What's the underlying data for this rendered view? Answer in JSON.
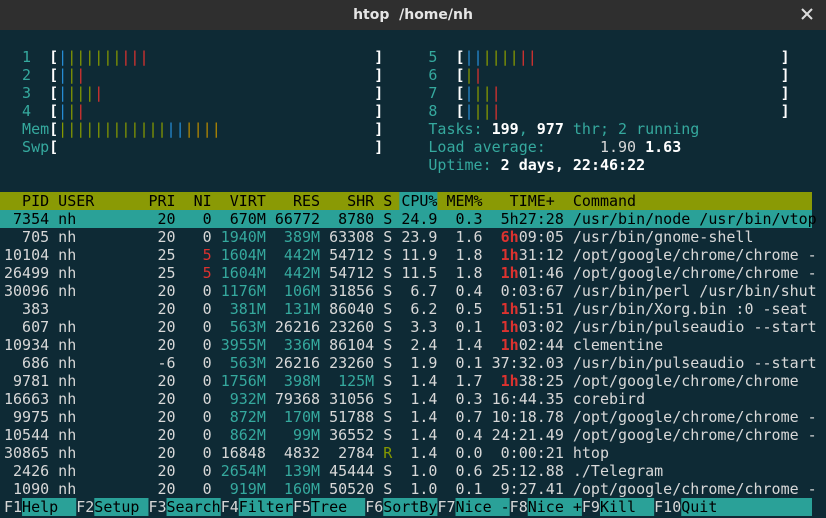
{
  "window": {
    "title": "htop  /home/nh"
  },
  "meters": {
    "left": [
      {
        "label": "1",
        "open": "[",
        "bar": [
          {
            "text": "|",
            "color": "#268bd2"
          },
          {
            "text": "||||||",
            "color": "#859900"
          },
          {
            "text": "|||",
            "color": "#dc322f"
          }
        ],
        "close": "]"
      },
      {
        "label": "2",
        "open": "[",
        "bar": [
          {
            "text": "|",
            "color": "#268bd2"
          },
          {
            "text": "|",
            "color": "#859900"
          },
          {
            "text": "|",
            "color": "#dc322f"
          }
        ],
        "close": "]"
      },
      {
        "label": "3",
        "open": "[",
        "bar": [
          {
            "text": "|",
            "color": "#268bd2"
          },
          {
            "text": "|||",
            "color": "#859900"
          },
          {
            "text": "|",
            "color": "#dc322f"
          }
        ],
        "close": "]"
      },
      {
        "label": "4",
        "open": "[",
        "bar": [
          {
            "text": "|",
            "color": "#268bd2"
          },
          {
            "text": "|",
            "color": "#859900"
          },
          {
            "text": "|",
            "color": "#dc322f"
          }
        ],
        "close": "]"
      },
      {
        "label": "Mem",
        "open": "[",
        "bar": [
          {
            "text": "||||||||||||",
            "color": "#859900"
          },
          {
            "text": "||",
            "color": "#268bd2"
          },
          {
            "text": "||||",
            "color": "#b58900"
          }
        ],
        "close": "]"
      },
      {
        "label": "Swp",
        "open": "[",
        "bar": [],
        "close": "]"
      }
    ],
    "right": [
      {
        "label": "5",
        "open": "[",
        "bar": [
          {
            "text": "||",
            "color": "#268bd2"
          },
          {
            "text": "||||",
            "color": "#859900"
          },
          {
            "text": "||",
            "color": "#dc322f"
          }
        ],
        "close": "]"
      },
      {
        "label": "6",
        "open": "[",
        "bar": [
          {
            "text": "|",
            "color": "#859900"
          },
          {
            "text": "|",
            "color": "#dc322f"
          }
        ],
        "close": "]"
      },
      {
        "label": "7",
        "open": "[",
        "bar": [
          {
            "text": "|",
            "color": "#268bd2"
          },
          {
            "text": "||",
            "color": "#859900"
          },
          {
            "text": "|",
            "color": "#dc322f"
          }
        ],
        "close": "]"
      },
      {
        "label": "8",
        "open": "[",
        "bar": [
          {
            "text": "|",
            "color": "#268bd2"
          },
          {
            "text": "||",
            "color": "#859900"
          },
          {
            "text": "|",
            "color": "#dc322f"
          }
        ],
        "close": "]"
      }
    ]
  },
  "summary": {
    "tasks": {
      "label": "Tasks:",
      "processes": "199",
      "sep": ",",
      "threads": "977",
      "running": "thr; 2 running"
    },
    "load": {
      "label": "Load average:",
      "avg1": "1.90",
      "avg5": "1.63"
    },
    "uptime": {
      "label": "Uptime:",
      "value": "2 days, 22:46:22"
    }
  },
  "table": {
    "header": [
      "PID",
      "USER",
      "PRI",
      "NI",
      "VIRT",
      "RES",
      "SHR",
      "S",
      "CPU%",
      "MEM%",
      "TIME+",
      "Command"
    ],
    "selected": 0,
    "rows": [
      [
        "7354",
        "nh",
        "20",
        "0",
        "670M",
        "66772",
        "8780",
        "S",
        "24.9",
        "0.3",
        [
          "5h",
          "27:28"
        ],
        "/usr/bin/node /usr/bin/vtop"
      ],
      [
        "705",
        "nh",
        "20",
        "0",
        "1940M",
        "389M",
        "63308",
        "S",
        "23.9",
        "1.6",
        [
          "6h",
          "09:05"
        ],
        "/usr/bin/gnome-shell"
      ],
      [
        "10104",
        "nh",
        "25",
        "5",
        "1604M",
        "442M",
        "54712",
        "S",
        "11.9",
        "1.8",
        [
          "1h",
          "31:12"
        ],
        "/opt/google/chrome/chrome -"
      ],
      [
        "26499",
        "nh",
        "25",
        "5",
        "1604M",
        "442M",
        "54712",
        "S",
        "11.5",
        "1.8",
        [
          "1h",
          "01:46"
        ],
        "/opt/google/chrome/chrome -"
      ],
      [
        "30096",
        "nh",
        "20",
        "0",
        "1176M",
        "106M",
        "31856",
        "S",
        "6.7",
        "0.4",
        "0:03:67",
        "/usr/bin/perl /usr/bin/shut"
      ],
      [
        "383",
        null,
        "20",
        "0",
        "381M",
        "131M",
        "86040",
        "S",
        "6.2",
        "0.5",
        [
          "1h",
          "51:51"
        ],
        "/usr/bin/Xorg.bin :0 -seat"
      ],
      [
        "607",
        "nh",
        "20",
        "0",
        "563M",
        "26216",
        "23260",
        "S",
        "3.3",
        "0.1",
        [
          "1h",
          "03:02"
        ],
        "/usr/bin/pulseaudio --start"
      ],
      [
        "10934",
        "nh",
        "20",
        "0",
        "3955M",
        "336M",
        "86104",
        "S",
        "2.4",
        "1.4",
        [
          "1h",
          "02:44"
        ],
        "clementine"
      ],
      [
        "686",
        "nh",
        "-6",
        "0",
        "563M",
        "26216",
        "23260",
        "S",
        "1.9",
        "0.1",
        "37:32.03",
        "/usr/bin/pulseaudio --start"
      ],
      [
        "9781",
        "nh",
        "20",
        "0",
        "1756M",
        "398M",
        "125M",
        "S",
        "1.4",
        "1.7",
        [
          "1h",
          "38:25"
        ],
        "/opt/google/chrome/chrome"
      ],
      [
        "16663",
        "nh",
        "20",
        "0",
        "932M",
        "79368",
        "31056",
        "S",
        "1.4",
        "0.3",
        "16:44.35",
        "corebird"
      ],
      [
        "9975",
        "nh",
        "20",
        "0",
        "872M",
        "170M",
        "51788",
        "S",
        "1.4",
        "0.7",
        "10:18.78",
        "/opt/google/chrome/chrome -"
      ],
      [
        "10544",
        "nh",
        "20",
        "0",
        "862M",
        "99M",
        "36552",
        "S",
        "1.4",
        "0.4",
        "24:21.49",
        "/opt/google/chrome/chrome -"
      ],
      [
        "30865",
        "nh",
        "20",
        "0",
        "16848",
        "4832",
        "2784",
        "R",
        "1.4",
        "0.0",
        "0:00:21",
        "htop"
      ],
      [
        "2426",
        "nh",
        "20",
        "0",
        "2654M",
        "139M",
        "45444",
        "S",
        "1.0",
        "0.6",
        "25:12.88",
        "./Telegram"
      ],
      [
        "1090",
        "nh",
        "20",
        "0",
        "919M",
        "160M",
        "50520",
        "S",
        "1.0",
        "0.1",
        "9:27.41",
        "/opt/google/chrome/chrome -"
      ]
    ]
  },
  "function_bar": [
    {
      "key": "F1",
      "label": "Help"
    },
    {
      "key": "F2",
      "label": "Setup"
    },
    {
      "key": "F3",
      "label": "Search"
    },
    {
      "key": "F4",
      "label": "Filter"
    },
    {
      "key": "F5",
      "label": "Tree"
    },
    {
      "key": "F6",
      "label": "SortBy"
    },
    {
      "key": "F7",
      "label": "Nice -"
    },
    {
      "key": "F8",
      "label": "Nice +"
    },
    {
      "key": "F9",
      "label": "Kill"
    },
    {
      "key": "F10",
      "label": "Quit"
    }
  ]
}
